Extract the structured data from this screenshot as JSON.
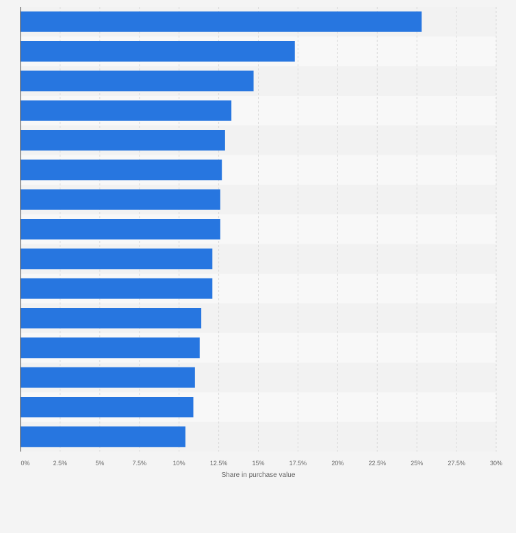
{
  "chart_data": {
    "type": "bar",
    "orientation": "horizontal",
    "title": "",
    "xlabel": "Share in purchase value",
    "ylabel": "",
    "categories": [
      "",
      "",
      "",
      "",
      "",
      "",
      "",
      "",
      "",
      "",
      "",
      "",
      "",
      "",
      ""
    ],
    "values": [
      25.3,
      17.3,
      14.7,
      13.3,
      12.9,
      12.7,
      12.6,
      12.6,
      12.1,
      12.1,
      11.4,
      11.3,
      11.0,
      10.9,
      10.4
    ],
    "xlim": [
      0,
      30
    ],
    "x_ticks": [
      0,
      2.5,
      5,
      7.5,
      10,
      12.5,
      15,
      17.5,
      20,
      22.5,
      25,
      27.5,
      30
    ],
    "x_tick_labels": [
      "0%",
      "2.5%",
      "5%",
      "7.5%",
      "10%",
      "12.5%",
      "15%",
      "17.5%",
      "20%",
      "22.5%",
      "25%",
      "27.5%",
      "30%"
    ],
    "grid": true,
    "legend": "none",
    "colors": {
      "bar": "#2776e0",
      "background": "#f4f4f4",
      "band_light": "#f8f8f8",
      "band_dark": "#f2f2f2",
      "grid": "#d9d9d9",
      "axis": "#444444",
      "text": "#666666"
    }
  }
}
